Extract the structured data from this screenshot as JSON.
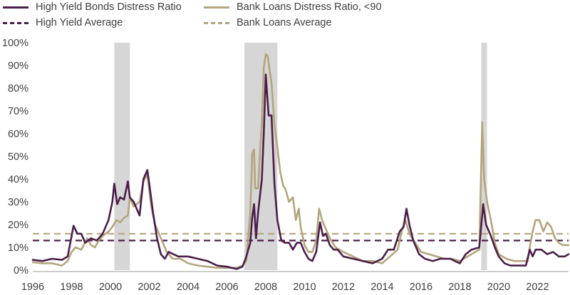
{
  "chart_data": {
    "type": "line",
    "title": "",
    "xlabel": "",
    "ylabel": "",
    "xlim": [
      1996,
      2023.6
    ],
    "ylim": [
      0,
      100
    ],
    "y_unit": "%",
    "grid": false,
    "legend_position": "top",
    "x_ticks": [
      "1996",
      "1998",
      "2000",
      "2002",
      "2004",
      "2006",
      "2008",
      "2010",
      "2012",
      "2014",
      "2016",
      "2018",
      "2020",
      "2022"
    ],
    "y_ticks": [
      "0%",
      "10%",
      "20%",
      "30%",
      "40%",
      "50%",
      "60%",
      "70%",
      "80%",
      "90%",
      "100%"
    ],
    "recession_shading": [
      [
        2000.2,
        2001.0
      ],
      [
        2006.9,
        2008.6
      ],
      [
        2019.1,
        2019.4
      ]
    ],
    "averages": [
      {
        "name": "High Yield Average",
        "value": 13,
        "color": "#4b1e4a"
      },
      {
        "name": "Bank Loans Average",
        "value": 16,
        "color": "#b3a57c"
      }
    ],
    "series": [
      {
        "name": "High Yield Bonds Distress Ratio",
        "color": "#4b1e4a",
        "points": [
          [
            1996.0,
            4.5
          ],
          [
            1996.5,
            4
          ],
          [
            1997.0,
            5
          ],
          [
            1997.5,
            4.5
          ],
          [
            1997.8,
            6
          ],
          [
            1998.0,
            15
          ],
          [
            1998.1,
            19.5
          ],
          [
            1998.3,
            16
          ],
          [
            1998.5,
            16
          ],
          [
            1998.7,
            12
          ],
          [
            1999.0,
            14
          ],
          [
            1999.3,
            13
          ],
          [
            1999.6,
            16
          ],
          [
            1999.9,
            22
          ],
          [
            2000.1,
            30
          ],
          [
            2000.2,
            38
          ],
          [
            2000.35,
            29
          ],
          [
            2000.5,
            32
          ],
          [
            2000.7,
            31
          ],
          [
            2000.9,
            39
          ],
          [
            2001.0,
            32
          ],
          [
            2001.2,
            30
          ],
          [
            2001.5,
            24
          ],
          [
            2001.7,
            40
          ],
          [
            2001.9,
            44
          ],
          [
            2002.0,
            38
          ],
          [
            2002.2,
            25
          ],
          [
            2002.4,
            14
          ],
          [
            2002.6,
            7
          ],
          [
            2002.8,
            5
          ],
          [
            2003.0,
            8
          ],
          [
            2003.5,
            6
          ],
          [
            2004.0,
            6
          ],
          [
            2004.5,
            5
          ],
          [
            2005.0,
            4
          ],
          [
            2005.5,
            2
          ],
          [
            2006.0,
            1.5
          ],
          [
            2006.5,
            0.5
          ],
          [
            2006.8,
            1.5
          ],
          [
            2007.0,
            6
          ],
          [
            2007.2,
            12
          ],
          [
            2007.3,
            23
          ],
          [
            2007.4,
            29
          ],
          [
            2007.5,
            14
          ],
          [
            2007.6,
            25
          ],
          [
            2007.8,
            40
          ],
          [
            2007.9,
            60
          ],
          [
            2008.0,
            86
          ],
          [
            2008.15,
            68
          ],
          [
            2008.3,
            68
          ],
          [
            2008.45,
            38
          ],
          [
            2008.6,
            22
          ],
          [
            2008.8,
            13
          ],
          [
            2009.0,
            12
          ],
          [
            2009.2,
            12
          ],
          [
            2009.4,
            9
          ],
          [
            2009.6,
            12
          ],
          [
            2009.8,
            12
          ],
          [
            2010.0,
            8
          ],
          [
            2010.2,
            5
          ],
          [
            2010.4,
            4
          ],
          [
            2010.6,
            8
          ],
          [
            2010.8,
            21
          ],
          [
            2010.95,
            15
          ],
          [
            2011.1,
            16
          ],
          [
            2011.3,
            11
          ],
          [
            2011.5,
            9
          ],
          [
            2011.7,
            9
          ],
          [
            2012.0,
            6
          ],
          [
            2012.5,
            5
          ],
          [
            2013.0,
            4
          ],
          [
            2013.5,
            3
          ],
          [
            2014.0,
            5
          ],
          [
            2014.3,
            9
          ],
          [
            2014.6,
            9
          ],
          [
            2014.9,
            17
          ],
          [
            2015.1,
            19
          ],
          [
            2015.25,
            27
          ],
          [
            2015.4,
            20
          ],
          [
            2015.6,
            13
          ],
          [
            2015.9,
            7
          ],
          [
            2016.2,
            5
          ],
          [
            2016.6,
            4
          ],
          [
            2017.0,
            5
          ],
          [
            2017.5,
            5
          ],
          [
            2018.0,
            3
          ],
          [
            2018.3,
            7
          ],
          [
            2018.6,
            9
          ],
          [
            2019.0,
            10
          ],
          [
            2019.2,
            29
          ],
          [
            2019.35,
            20
          ],
          [
            2019.6,
            15
          ],
          [
            2019.8,
            10
          ],
          [
            2020.0,
            6
          ],
          [
            2020.3,
            3
          ],
          [
            2020.6,
            2
          ],
          [
            2021.0,
            2
          ],
          [
            2021.4,
            2
          ],
          [
            2021.6,
            9
          ],
          [
            2021.75,
            6
          ],
          [
            2021.9,
            9
          ],
          [
            2022.2,
            9
          ],
          [
            2022.5,
            7
          ],
          [
            2022.8,
            8
          ],
          [
            2023.1,
            6
          ],
          [
            2023.4,
            6
          ],
          [
            2023.6,
            7
          ]
        ]
      },
      {
        "name": "Bank Loans Distress Ratio, <90",
        "color": "#b3a57c",
        "points": [
          [
            1996.0,
            3.5
          ],
          [
            1996.5,
            3
          ],
          [
            1997.0,
            3
          ],
          [
            1997.5,
            2
          ],
          [
            1997.8,
            4
          ],
          [
            1998.0,
            8
          ],
          [
            1998.2,
            10
          ],
          [
            1998.5,
            9
          ],
          [
            1998.8,
            14
          ],
          [
            1999.0,
            11
          ],
          [
            1999.2,
            10
          ],
          [
            1999.4,
            13
          ],
          [
            1999.6,
            15
          ],
          [
            1999.9,
            17
          ],
          [
            2000.1,
            19
          ],
          [
            2000.3,
            22
          ],
          [
            2000.5,
            21
          ],
          [
            2000.7,
            23
          ],
          [
            2000.9,
            24
          ],
          [
            2001.0,
            32
          ],
          [
            2001.2,
            28
          ],
          [
            2001.5,
            30
          ],
          [
            2001.7,
            39
          ],
          [
            2001.9,
            42
          ],
          [
            2002.1,
            28
          ],
          [
            2002.3,
            20
          ],
          [
            2002.5,
            16
          ],
          [
            2002.7,
            12
          ],
          [
            2002.9,
            8
          ],
          [
            2003.2,
            5
          ],
          [
            2003.6,
            5
          ],
          [
            2004.0,
            3
          ],
          [
            2004.5,
            2
          ],
          [
            2005.0,
            1.5
          ],
          [
            2005.5,
            1
          ],
          [
            2006.0,
            1
          ],
          [
            2006.5,
            1
          ],
          [
            2006.8,
            2
          ],
          [
            2007.0,
            4
          ],
          [
            2007.2,
            25
          ],
          [
            2007.3,
            51
          ],
          [
            2007.4,
            53
          ],
          [
            2007.45,
            36
          ],
          [
            2007.6,
            36
          ],
          [
            2007.8,
            65
          ],
          [
            2007.9,
            89
          ],
          [
            2008.0,
            95
          ],
          [
            2008.1,
            94
          ],
          [
            2008.3,
            82
          ],
          [
            2008.45,
            64
          ],
          [
            2008.6,
            54
          ],
          [
            2008.75,
            43
          ],
          [
            2008.9,
            37
          ],
          [
            2009.0,
            36
          ],
          [
            2009.2,
            30
          ],
          [
            2009.4,
            32
          ],
          [
            2009.55,
            22
          ],
          [
            2009.7,
            27
          ],
          [
            2009.8,
            19
          ],
          [
            2010.0,
            11
          ],
          [
            2010.2,
            8
          ],
          [
            2010.4,
            8
          ],
          [
            2010.6,
            13
          ],
          [
            2010.75,
            27
          ],
          [
            2010.9,
            22
          ],
          [
            2011.1,
            18
          ],
          [
            2011.3,
            14
          ],
          [
            2011.6,
            10
          ],
          [
            2012.0,
            8
          ],
          [
            2012.5,
            6
          ],
          [
            2013.0,
            4
          ],
          [
            2013.5,
            4
          ],
          [
            2014.0,
            3
          ],
          [
            2014.4,
            6
          ],
          [
            2014.8,
            9
          ],
          [
            2015.0,
            17
          ],
          [
            2015.2,
            22
          ],
          [
            2015.4,
            16
          ],
          [
            2015.7,
            12
          ],
          [
            2016.0,
            8
          ],
          [
            2016.4,
            7
          ],
          [
            2016.8,
            6
          ],
          [
            2017.2,
            5
          ],
          [
            2017.6,
            5
          ],
          [
            2018.0,
            4
          ],
          [
            2018.4,
            6
          ],
          [
            2018.8,
            8
          ],
          [
            2019.0,
            9
          ],
          [
            2019.15,
            65
          ],
          [
            2019.25,
            40
          ],
          [
            2019.4,
            30
          ],
          [
            2019.6,
            22
          ],
          [
            2019.8,
            12
          ],
          [
            2020.0,
            7
          ],
          [
            2020.4,
            5
          ],
          [
            2020.8,
            4
          ],
          [
            2021.2,
            4
          ],
          [
            2021.5,
            4
          ],
          [
            2021.6,
            10
          ],
          [
            2021.75,
            17
          ],
          [
            2021.9,
            22
          ],
          [
            2022.1,
            22
          ],
          [
            2022.3,
            17
          ],
          [
            2022.5,
            21
          ],
          [
            2022.7,
            19
          ],
          [
            2022.9,
            14
          ],
          [
            2023.1,
            12
          ],
          [
            2023.3,
            11
          ],
          [
            2023.6,
            11
          ]
        ]
      },
      {
        "name": "High Yield Average",
        "color": "#4b1e4a",
        "dashed": true,
        "points": [
          [
            1996.0,
            13
          ],
          [
            2023.6,
            13
          ]
        ]
      },
      {
        "name": "Bank Loans Average",
        "color": "#b3a57c",
        "dashed": true,
        "points": [
          [
            1996.0,
            16
          ],
          [
            2023.6,
            16
          ]
        ]
      }
    ]
  },
  "legend": [
    {
      "label": "High Yield Bonds Distress Ratio",
      "style": "solid",
      "color": "#4b1e4a"
    },
    {
      "label": "Bank Loans Distress Ratio, <90",
      "style": "solid",
      "color": "#b3a57c"
    },
    {
      "label": "High Yield Average",
      "style": "dashed",
      "color": "#4b1e4a"
    },
    {
      "label": "Bank Loans Average",
      "style": "dashed",
      "color": "#b3a57c"
    }
  ]
}
